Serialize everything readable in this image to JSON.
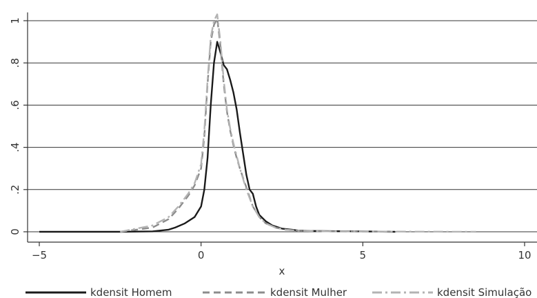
{
  "chart_data": {
    "type": "line",
    "title": "",
    "xlabel": "x",
    "ylabel": "",
    "xlim": [
      -5.3,
      10.2
    ],
    "ylim": [
      -0.03,
      1.05
    ],
    "x_ticks": [
      {
        "value": -5,
        "label": "−5"
      },
      {
        "value": 0,
        "label": "0"
      },
      {
        "value": 5,
        "label": "5"
      },
      {
        "value": 10,
        "label": "10"
      }
    ],
    "y_ticks": [
      {
        "value": 0,
        "label": "0"
      },
      {
        "value": 0.2,
        "label": ".2"
      },
      {
        "value": 0.4,
        "label": ".4"
      },
      {
        "value": 0.6,
        "label": ".6"
      },
      {
        "value": 0.8,
        "label": ".8"
      },
      {
        "value": 1,
        "label": "1"
      }
    ],
    "grid": "horizontal",
    "legend_position": "bottom",
    "series": [
      {
        "name": "kdensit Homem",
        "color": "#1a1a1a",
        "style": "solid",
        "x": [
          -5,
          -2.5,
          -1.5,
          -1.0,
          -0.8,
          -0.5,
          -0.2,
          0.0,
          0.1,
          0.2,
          0.3,
          0.4,
          0.5,
          0.6,
          0.7,
          0.8,
          0.9,
          1.0,
          1.1,
          1.2,
          1.3,
          1.4,
          1.5,
          1.6,
          1.7,
          1.8,
          2.0,
          2.2,
          2.5,
          2.8,
          3.0,
          3.5,
          4.0,
          5.0,
          6.0
        ],
        "y": [
          0,
          0,
          0.002,
          0.01,
          0.02,
          0.04,
          0.07,
          0.12,
          0.2,
          0.35,
          0.6,
          0.8,
          0.9,
          0.85,
          0.79,
          0.77,
          0.72,
          0.66,
          0.58,
          0.47,
          0.37,
          0.27,
          0.2,
          0.18,
          0.12,
          0.08,
          0.05,
          0.03,
          0.015,
          0.01,
          0.006,
          0.004,
          0.003,
          0.002,
          0
        ]
      },
      {
        "name": "kdensit Mulher",
        "color": "#8c8c8c",
        "style": "dash",
        "x": [
          -2.5,
          -1.5,
          -1.0,
          -0.7,
          -0.4,
          -0.2,
          0.0,
          0.1,
          0.2,
          0.3,
          0.4,
          0.5,
          0.6,
          0.7,
          0.8,
          0.9,
          1.0,
          1.1,
          1.2,
          1.4,
          1.6,
          1.8,
          2.0,
          2.3,
          2.6,
          3.0,
          4.0,
          6.0
        ],
        "y": [
          0,
          0.02,
          0.06,
          0.11,
          0.17,
          0.22,
          0.3,
          0.45,
          0.7,
          0.9,
          0.98,
          1.01,
          0.88,
          0.7,
          0.57,
          0.48,
          0.41,
          0.35,
          0.3,
          0.21,
          0.12,
          0.07,
          0.04,
          0.02,
          0.01,
          0.005,
          0.002,
          0
        ]
      },
      {
        "name": "kdensit Simulação",
        "color": "#b3b3b3",
        "style": "dashdot",
        "x": [
          -2.5,
          -1.5,
          -1.0,
          -0.7,
          -0.4,
          -0.2,
          0.0,
          0.1,
          0.2,
          0.3,
          0.4,
          0.5,
          0.6,
          0.7,
          0.8,
          0.9,
          1.0,
          1.1,
          1.2,
          1.4,
          1.6,
          1.8,
          2.0,
          2.3,
          2.6,
          3.0,
          4.0,
          6.0,
          8.5
        ],
        "y": [
          0,
          0.03,
          0.07,
          0.12,
          0.18,
          0.23,
          0.32,
          0.48,
          0.72,
          0.92,
          1.0,
          1.03,
          0.9,
          0.72,
          0.58,
          0.49,
          0.42,
          0.36,
          0.3,
          0.2,
          0.12,
          0.07,
          0.04,
          0.02,
          0.01,
          0.005,
          0.002,
          0.001,
          0
        ]
      }
    ]
  }
}
